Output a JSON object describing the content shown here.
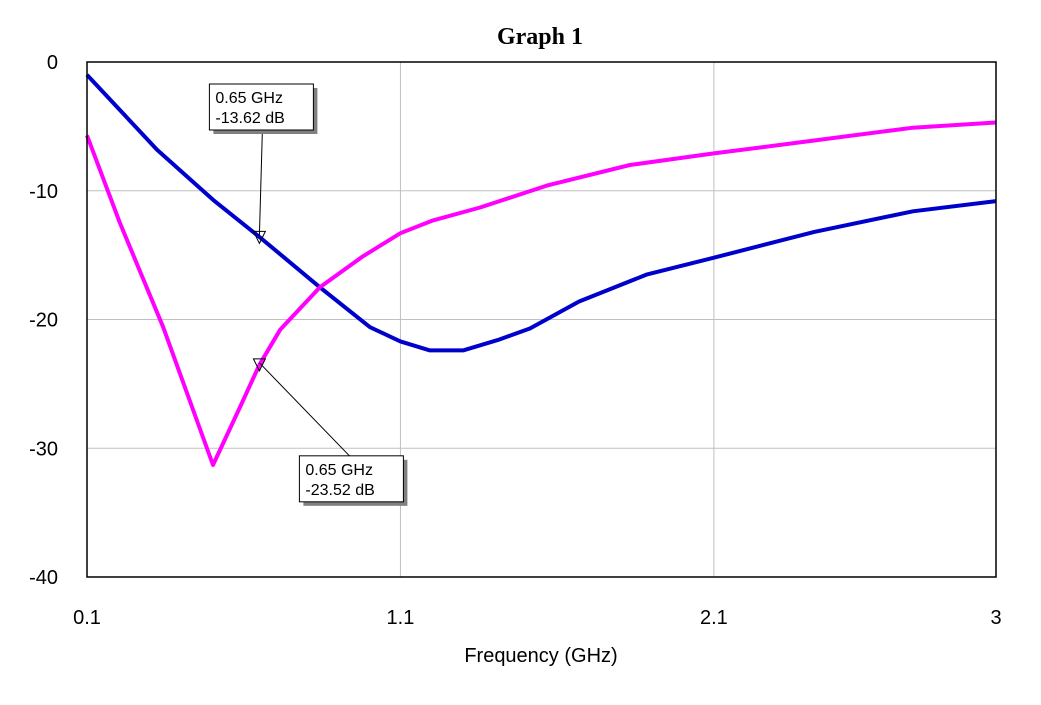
{
  "chart_data": {
    "type": "line",
    "title": "Graph 1",
    "xlabel": "Frequency (GHz)",
    "ylabel": "",
    "xlim": [
      0.1,
      3
    ],
    "ylim": [
      -40,
      0
    ],
    "xticks": [
      0.1,
      1.1,
      2.1,
      3
    ],
    "xtick_labels": [
      "0.1",
      "1.1",
      "2.1",
      "3"
    ],
    "yticks": [
      0,
      -10,
      -20,
      -30,
      -40
    ],
    "ytick_labels": [
      "0",
      "-10",
      "-20",
      "-30",
      "-40"
    ],
    "grid": true,
    "series": [
      {
        "name": "blue-trace",
        "color": "#0000cc",
        "x": [
          0.1,
          0.323,
          0.502,
          0.652,
          0.843,
          1.003,
          1.1,
          1.194,
          1.3,
          1.41,
          1.513,
          1.67,
          1.887,
          2.1,
          2.42,
          2.735,
          3.0
        ],
        "y": [
          -1.0,
          -6.8,
          -10.7,
          -13.62,
          -17.5,
          -20.6,
          -21.7,
          -22.4,
          -22.4,
          -21.6,
          -20.7,
          -18.6,
          -16.5,
          -15.2,
          -13.2,
          -11.6,
          -10.8
        ]
      },
      {
        "name": "magenta-trace",
        "color": "#ff00ff",
        "x": [
          0.1,
          0.205,
          0.343,
          0.502,
          0.588,
          0.65,
          0.716,
          0.843,
          0.98,
          1.1,
          1.204,
          1.354,
          1.567,
          1.832,
          2.1,
          2.42,
          2.735,
          3.0
        ],
        "y": [
          -5.7,
          -12.5,
          -20.6,
          -31.3,
          -26.8,
          -23.52,
          -20.8,
          -17.5,
          -15.1,
          -13.3,
          -12.3,
          -11.3,
          -9.6,
          -8.0,
          -7.1,
          -6.1,
          -5.1,
          -4.7
        ]
      }
    ],
    "markers": [
      {
        "series": "blue-trace",
        "x": 0.65,
        "y": -13.62,
        "line1": "0.65 GHz",
        "line2": "-13.62 dB",
        "placement": "above"
      },
      {
        "series": "magenta-trace",
        "x": 0.65,
        "y": -23.52,
        "line1": "0.65 GHz",
        "line2": "-23.52 dB",
        "placement": "below-right"
      }
    ]
  }
}
